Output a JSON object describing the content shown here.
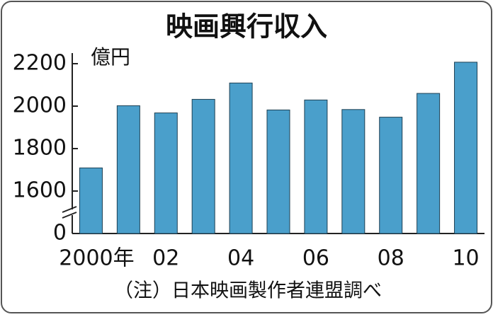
{
  "chart_data": {
    "type": "bar",
    "title": "映画興行収入",
    "unit_label": "億円",
    "note": "（注）日本映画製作者連盟調べ",
    "categories": [
      "2000年",
      null,
      "02",
      null,
      "04",
      null,
      "06",
      null,
      "08",
      null,
      "10"
    ],
    "values": [
      1709,
      2002,
      1968,
      2032,
      2109,
      1982,
      2029,
      1984,
      1948,
      2060,
      2207
    ],
    "color": "#4a9fcb",
    "ylim": [
      0,
      2250
    ],
    "yticks": [
      0,
      1600,
      1800,
      2000,
      2200
    ],
    "axis_break": [
      0,
      1400
    ],
    "grid": false
  }
}
